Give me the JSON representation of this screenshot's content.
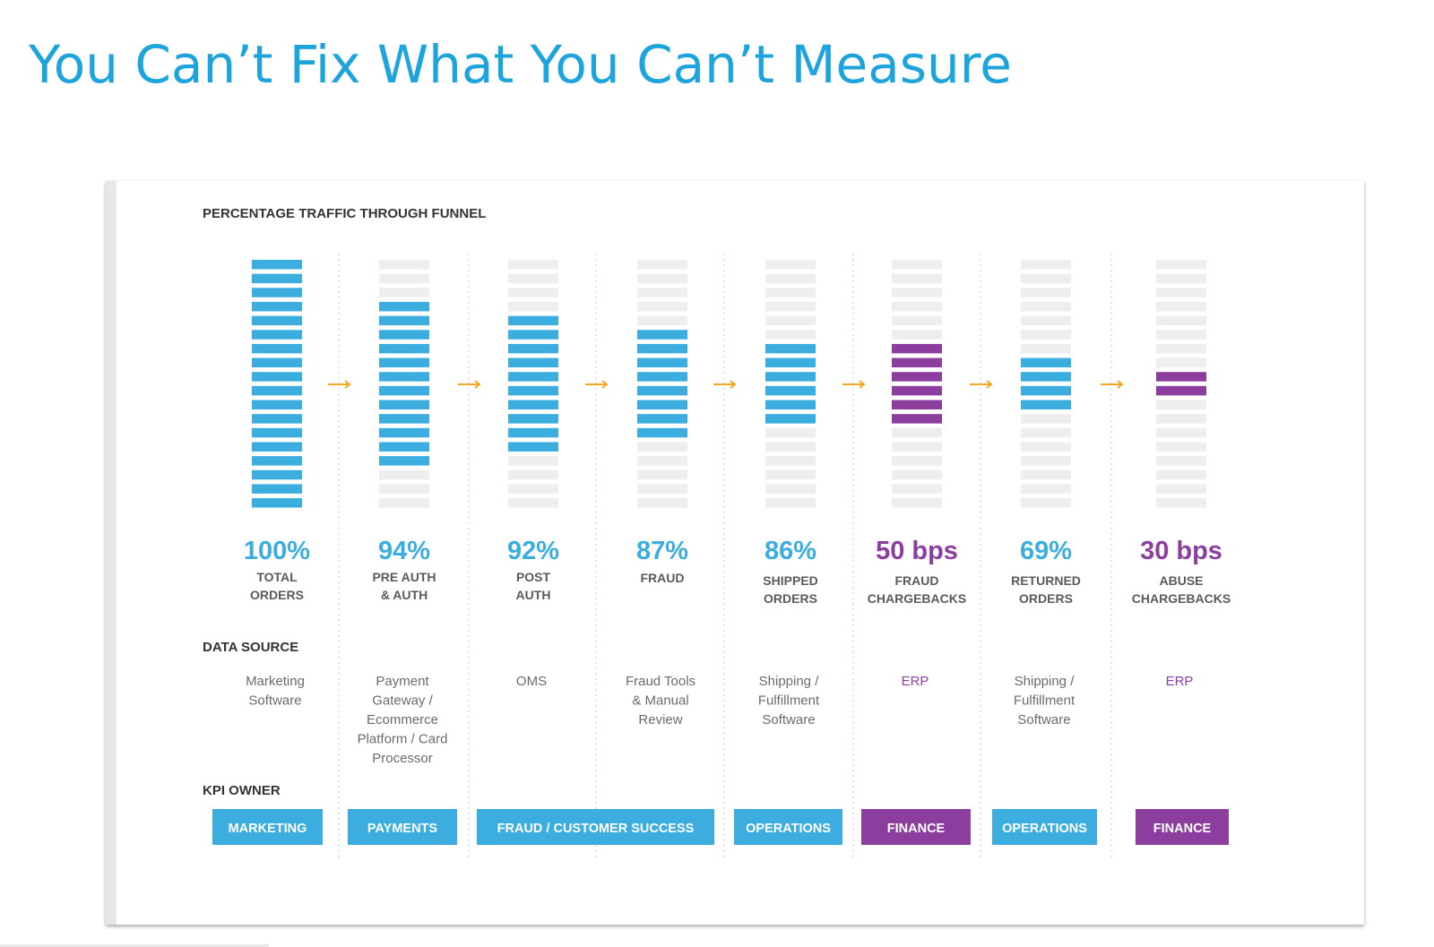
{
  "page": {
    "title": "You Can’t Fix What You Can’t Measure"
  },
  "chart_data": {
    "type": "bar",
    "title": "PERCENTAGE TRAFFIC THROUGH FUNNEL",
    "total_segments": 18,
    "colors": {
      "blue": "#3badde",
      "purple": "#8c3e9f",
      "empty": "#eeeeee",
      "arrow": "#f5a623",
      "text_dark": "#333333",
      "text_gray": "#666666"
    },
    "stages": [
      {
        "value_label": "100%",
        "lines": [
          "TOTAL",
          "ORDERS"
        ],
        "filled": 18,
        "color": "blue"
      },
      {
        "value_label": "94%",
        "lines": [
          "PRE AUTH",
          "& AUTH"
        ],
        "filled": 12,
        "color": "blue"
      },
      {
        "value_label": "92%",
        "lines": [
          "POST",
          "AUTH"
        ],
        "filled": 10,
        "color": "blue"
      },
      {
        "value_label": "87%",
        "lines": [
          "FRAUD"
        ],
        "filled": 8,
        "color": "blue"
      },
      {
        "value_label": "86%",
        "lines": [
          "SHIPPED",
          "ORDERS"
        ],
        "filled": 6,
        "color": "blue"
      },
      {
        "value_label": "50 bps",
        "lines": [
          "FRAUD",
          "CHARGEBACKS"
        ],
        "filled": 6,
        "color": "purple"
      },
      {
        "value_label": "69%",
        "lines": [
          "RETURNED",
          "ORDERS"
        ],
        "filled": 4,
        "color": "blue"
      },
      {
        "value_label": "30 bps",
        "lines": [
          "ABUSE",
          "CHARGEBACKS"
        ],
        "filled": 2,
        "color": "purple"
      }
    ],
    "data_source_label": "DATA SOURCE",
    "data_sources": [
      {
        "lines": [
          "Marketing",
          "Software"
        ],
        "color": "gray"
      },
      {
        "lines": [
          "Payment",
          "Gateway /",
          "Ecommerce",
          "Platform / Card",
          "Processor"
        ],
        "color": "gray"
      },
      {
        "lines": [
          "OMS"
        ],
        "color": "gray"
      },
      {
        "lines": [
          "Fraud Tools",
          "& Manual",
          "Review"
        ],
        "color": "gray"
      },
      {
        "lines": [
          "Shipping /",
          "Fulfillment",
          "Software"
        ],
        "color": "gray"
      },
      {
        "lines": [
          "ERP"
        ],
        "color": "purple"
      },
      {
        "lines": [
          "Shipping /",
          "Fulfillment",
          "Software"
        ],
        "color": "gray"
      },
      {
        "lines": [
          "ERP"
        ],
        "color": "purple"
      }
    ],
    "kpi_owner_label": "KPI OWNER",
    "kpi_owners": [
      {
        "label": "MARKETING",
        "color": "blue"
      },
      {
        "label": "PAYMENTS",
        "color": "blue"
      },
      {
        "label": "FRAUD / CUSTOMER SUCCESS",
        "color": "blue"
      },
      {
        "label": "OPERATIONS",
        "color": "blue"
      },
      {
        "label": "FINANCE",
        "color": "purple"
      },
      {
        "label": "OPERATIONS",
        "color": "blue"
      },
      {
        "label": "FINANCE",
        "color": "purple"
      }
    ]
  }
}
